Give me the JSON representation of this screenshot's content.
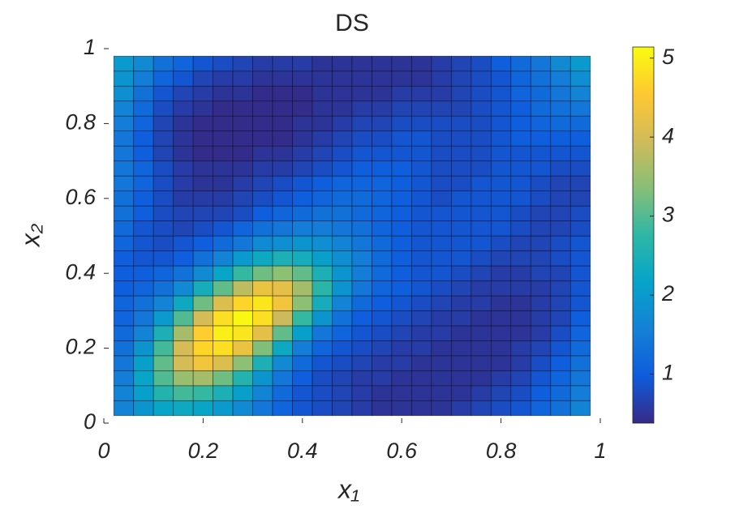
{
  "chart_data": {
    "type": "heatmap",
    "title": "DS",
    "xlabel": "x₁",
    "ylabel": "x₂",
    "xlim": [
      0,
      1
    ],
    "ylim": [
      0,
      1
    ],
    "xticks": [
      0,
      {
        "value": 0.2,
        "label": "0.2"
      },
      {
        "value": 0.4,
        "label": "0.4"
      },
      {
        "value": 0.6,
        "label": "0.6"
      },
      {
        "value": 0.8,
        "label": "0.8"
      },
      1
    ],
    "yticks": [
      0,
      {
        "value": 0.2,
        "label": "0.2"
      },
      {
        "value": 0.4,
        "label": "0.4"
      },
      {
        "value": 0.6,
        "label": "0.6"
      },
      {
        "value": 0.8,
        "label": "0.8"
      },
      1
    ],
    "x_edges": [
      0.02,
      0.06,
      0.1,
      0.14,
      0.18,
      0.22,
      0.26,
      0.3,
      0.34,
      0.38,
      0.42,
      0.46,
      0.5,
      0.54,
      0.58,
      0.62,
      0.66,
      0.7,
      0.74,
      0.78,
      0.82,
      0.86,
      0.9,
      0.94,
      0.98
    ],
    "y_edges": [
      0.02,
      0.06,
      0.1,
      0.14,
      0.18,
      0.22,
      0.26,
      0.3,
      0.34,
      0.38,
      0.42,
      0.46,
      0.5,
      0.54,
      0.58,
      0.62,
      0.66,
      0.7,
      0.74,
      0.78,
      0.82,
      0.86,
      0.9,
      0.94,
      0.98
    ],
    "z": [
      [
        1.6,
        1.9,
        2.2,
        2.3,
        2.2,
        2.0,
        1.7,
        1.4,
        1.1,
        0.9,
        0.8,
        0.7,
        0.6,
        0.5,
        0.5,
        0.5,
        0.5,
        0.6,
        0.7,
        0.8,
        0.9,
        1.1,
        1.3,
        1.6
      ],
      [
        1.6,
        2.1,
        2.6,
        2.9,
        2.8,
        2.5,
        2.1,
        1.6,
        1.2,
        0.9,
        0.8,
        0.7,
        0.6,
        0.5,
        0.5,
        0.5,
        0.5,
        0.5,
        0.6,
        0.7,
        0.8,
        1.0,
        1.2,
        1.5
      ],
      [
        1.5,
        2.2,
        3.0,
        3.5,
        3.6,
        3.2,
        2.6,
        1.9,
        1.4,
        1.0,
        0.8,
        0.7,
        0.6,
        0.6,
        0.5,
        0.5,
        0.5,
        0.5,
        0.5,
        0.6,
        0.7,
        0.9,
        1.1,
        1.4
      ],
      [
        1.4,
        2.1,
        3.1,
        4.0,
        4.4,
        4.1,
        3.4,
        2.5,
        1.7,
        1.2,
        0.9,
        0.8,
        0.7,
        0.6,
        0.6,
        0.5,
        0.5,
        0.5,
        0.5,
        0.5,
        0.6,
        0.8,
        1.0,
        1.3
      ],
      [
        1.3,
        1.9,
        2.9,
        4.0,
        4.7,
        4.8,
        4.3,
        3.3,
        2.3,
        1.5,
        1.1,
        0.9,
        0.8,
        0.7,
        0.6,
        0.6,
        0.5,
        0.5,
        0.5,
        0.5,
        0.6,
        0.7,
        0.9,
        1.2
      ],
      [
        1.2,
        1.6,
        2.5,
        3.6,
        4.6,
        5.0,
        4.9,
        4.2,
        3.1,
        2.1,
        1.4,
        1.1,
        0.9,
        0.8,
        0.7,
        0.6,
        0.6,
        0.5,
        0.5,
        0.5,
        0.5,
        0.6,
        0.8,
        1.1
      ],
      [
        1.1,
        1.4,
        2.0,
        3.0,
        4.0,
        4.8,
        5.1,
        4.8,
        3.9,
        2.8,
        1.9,
        1.3,
        1.0,
        0.9,
        0.8,
        0.7,
        0.6,
        0.6,
        0.5,
        0.5,
        0.5,
        0.6,
        0.7,
        1.0
      ],
      [
        1.1,
        1.3,
        1.6,
        2.3,
        3.2,
        4.1,
        4.7,
        4.9,
        4.4,
        3.4,
        2.4,
        1.6,
        1.2,
        1.0,
        0.9,
        0.8,
        0.7,
        0.6,
        0.6,
        0.5,
        0.5,
        0.6,
        0.7,
        0.9
      ],
      [
        1.0,
        1.1,
        1.3,
        1.7,
        2.4,
        3.1,
        3.8,
        4.3,
        4.2,
        3.6,
        2.7,
        1.9,
        1.4,
        1.1,
        1.0,
        0.9,
        0.8,
        0.7,
        0.6,
        0.6,
        0.6,
        0.6,
        0.7,
        0.9
      ],
      [
        1.0,
        1.0,
        1.1,
        1.3,
        1.7,
        2.2,
        2.8,
        3.2,
        3.4,
        3.1,
        2.5,
        1.9,
        1.5,
        1.2,
        1.0,
        0.9,
        0.9,
        0.8,
        0.7,
        0.6,
        0.6,
        0.7,
        0.7,
        0.9
      ],
      [
        1.0,
        0.9,
        0.9,
        1.0,
        1.3,
        1.6,
        2.0,
        2.3,
        2.5,
        2.4,
        2.1,
        1.8,
        1.5,
        1.2,
        1.0,
        0.9,
        0.9,
        0.9,
        0.8,
        0.7,
        0.7,
        0.7,
        0.8,
        0.9
      ],
      [
        1.1,
        0.9,
        0.8,
        0.9,
        1.0,
        1.2,
        1.4,
        1.7,
        1.8,
        1.9,
        1.8,
        1.6,
        1.4,
        1.2,
        1.0,
        0.9,
        0.9,
        0.9,
        0.9,
        0.8,
        0.7,
        0.7,
        0.8,
        0.9
      ],
      [
        1.2,
        0.9,
        0.8,
        0.7,
        0.8,
        0.9,
        1.1,
        1.3,
        1.4,
        1.5,
        1.5,
        1.4,
        1.3,
        1.1,
        1.0,
        0.9,
        0.9,
        0.9,
        0.9,
        0.9,
        0.8,
        0.7,
        0.7,
        0.8
      ],
      [
        1.3,
        1.0,
        0.8,
        0.7,
        0.7,
        0.7,
        0.8,
        1.0,
        1.1,
        1.2,
        1.3,
        1.3,
        1.2,
        1.1,
        1.0,
        0.9,
        0.9,
        0.9,
        0.9,
        0.9,
        0.8,
        0.7,
        0.7,
        0.8
      ],
      [
        1.3,
        1.0,
        0.8,
        0.6,
        0.6,
        0.6,
        0.7,
        0.8,
        0.9,
        1.0,
        1.1,
        1.2,
        1.2,
        1.1,
        1.0,
        0.9,
        0.8,
        0.9,
        0.9,
        0.9,
        0.9,
        0.8,
        0.7,
        0.7
      ],
      [
        1.4,
        1.1,
        0.8,
        0.6,
        0.5,
        0.5,
        0.6,
        0.7,
        0.8,
        0.9,
        1.0,
        1.1,
        1.1,
        1.1,
        1.0,
        0.9,
        0.8,
        0.8,
        0.9,
        0.9,
        0.9,
        0.8,
        0.7,
        0.7
      ],
      [
        1.4,
        1.1,
        0.8,
        0.6,
        0.5,
        0.5,
        0.5,
        0.6,
        0.6,
        0.7,
        0.8,
        0.9,
        1.0,
        1.0,
        1.0,
        0.9,
        0.8,
        0.8,
        0.8,
        0.9,
        0.9,
        0.9,
        0.8,
        0.8
      ],
      [
        1.4,
        1.0,
        0.7,
        0.5,
        0.4,
        0.4,
        0.4,
        0.5,
        0.5,
        0.6,
        0.7,
        0.8,
        0.9,
        0.9,
        0.9,
        0.9,
        0.8,
        0.8,
        0.8,
        0.9,
        0.9,
        0.9,
        0.9,
        0.9
      ],
      [
        1.4,
        1.0,
        0.7,
        0.5,
        0.4,
        0.4,
        0.4,
        0.4,
        0.4,
        0.5,
        0.6,
        0.7,
        0.8,
        0.8,
        0.9,
        0.9,
        0.8,
        0.8,
        0.8,
        0.9,
        1.0,
        1.0,
        1.0,
        1.0
      ],
      [
        1.5,
        1.1,
        0.7,
        0.5,
        0.4,
        0.4,
        0.4,
        0.4,
        0.4,
        0.5,
        0.5,
        0.6,
        0.7,
        0.7,
        0.8,
        0.8,
        0.8,
        0.8,
        0.8,
        0.9,
        1.0,
        1.1,
        1.2,
        1.2
      ],
      [
        1.6,
        1.2,
        0.8,
        0.6,
        0.5,
        0.4,
        0.4,
        0.4,
        0.4,
        0.4,
        0.5,
        0.5,
        0.6,
        0.6,
        0.7,
        0.7,
        0.7,
        0.7,
        0.8,
        0.9,
        1.0,
        1.2,
        1.3,
        1.4
      ],
      [
        1.8,
        1.3,
        0.9,
        0.7,
        0.6,
        0.5,
        0.5,
        0.4,
        0.4,
        0.4,
        0.5,
        0.5,
        0.5,
        0.5,
        0.6,
        0.6,
        0.6,
        0.7,
        0.8,
        0.9,
        1.1,
        1.2,
        1.4,
        1.6
      ],
      [
        1.9,
        1.5,
        1.1,
        0.9,
        0.7,
        0.6,
        0.6,
        0.5,
        0.5,
        0.5,
        0.5,
        0.5,
        0.5,
        0.5,
        0.5,
        0.5,
        0.6,
        0.7,
        0.8,
        0.9,
        1.1,
        1.3,
        1.5,
        1.8
      ],
      [
        2.0,
        1.7,
        1.3,
        1.1,
        0.9,
        0.8,
        0.7,
        0.6,
        0.6,
        0.6,
        0.5,
        0.5,
        0.5,
        0.5,
        0.5,
        0.5,
        0.6,
        0.7,
        0.8,
        1.0,
        1.2,
        1.4,
        1.7,
        2.0
      ]
    ],
    "clim": [
      0.38,
      5.14
    ],
    "cticks": [
      1,
      2,
      3,
      4,
      5
    ],
    "colormap": [
      "#352a87",
      "#0f5cdd",
      "#1481d6",
      "#06a4ca",
      "#2eb7a4",
      "#87bf77",
      "#d1bb59",
      "#fec832",
      "#f9fb0e"
    ],
    "grid": true
  }
}
